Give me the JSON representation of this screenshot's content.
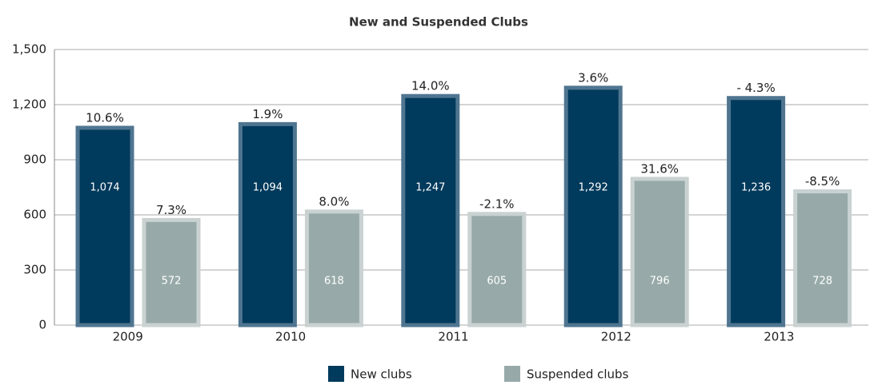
{
  "chart_data": {
    "type": "bar",
    "title": "New and Suspended Clubs",
    "categories": [
      "2009",
      "2010",
      "2011",
      "2012",
      "2013"
    ],
    "series": [
      {
        "name": "New clubs",
        "color": "#003a5c",
        "values": [
          1074,
          1094,
          1247,
          1292,
          1236
        ],
        "value_labels": [
          "1,074",
          "1,094",
          "1,247",
          "1,292",
          "1,236"
        ],
        "change_labels": [
          "10.6%",
          "1.9%",
          "14.0%",
          "3.6%",
          "- 4.3%"
        ]
      },
      {
        "name": "Suspended clubs",
        "color": "#97aaa9",
        "values": [
          572,
          618,
          605,
          796,
          728
        ],
        "value_labels": [
          "572",
          "618",
          "605",
          "796",
          "728"
        ],
        "change_labels": [
          "7.3%",
          "8.0%",
          "-2.1%",
          "31.6%",
          "-8.5%"
        ]
      }
    ],
    "ylim": [
      0,
      1500
    ],
    "yticks": [
      0,
      300,
      600,
      900,
      {
        "value": 1200,
        "label": "1,200"
      },
      {
        "value": 1500,
        "label": "1,500"
      }
    ],
    "grid": true,
    "legend": "bottom"
  }
}
